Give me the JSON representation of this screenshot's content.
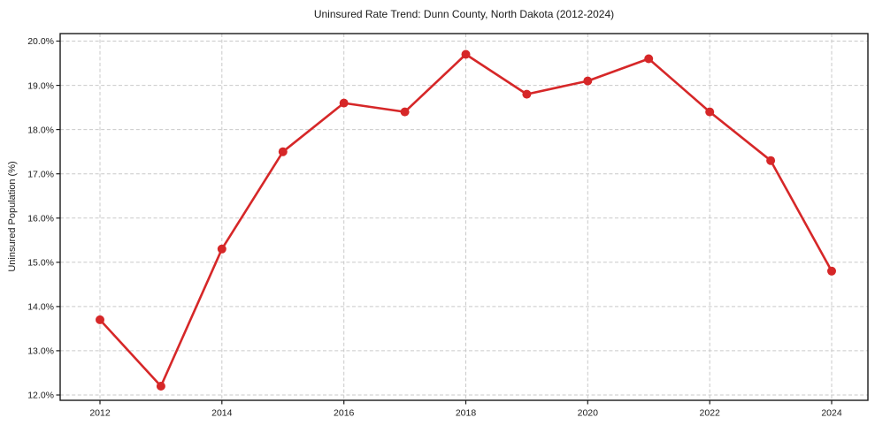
{
  "chart_data": {
    "type": "line",
    "title": "Uninsured Rate Trend: Dunn County, North Dakota (2012-2024)",
    "xlabel": "",
    "ylabel": "Uninsured Population (%)",
    "x": [
      2012,
      2013,
      2014,
      2015,
      2016,
      2017,
      2018,
      2019,
      2020,
      2021,
      2022,
      2023,
      2024
    ],
    "values": [
      13.7,
      12.2,
      15.3,
      17.5,
      18.6,
      18.4,
      19.7,
      18.8,
      19.1,
      19.6,
      18.4,
      17.3,
      14.8
    ],
    "xticks": {
      "values": [
        2012,
        2014,
        2016,
        2018,
        2020,
        2022,
        2024
      ],
      "labels": [
        "2012",
        "2014",
        "2016",
        "2018",
        "2020",
        "2022",
        "2024"
      ]
    },
    "yticks": {
      "values": [
        12,
        13,
        14,
        15,
        16,
        17,
        18,
        19,
        20
      ],
      "labels": [
        "12.0%",
        "13.0%",
        "14.0%",
        "15.0%",
        "16.0%",
        "17.0%",
        "18.0%",
        "19.0%",
        "20.0%"
      ]
    },
    "xlim": [
      2011.347,
      2024.595
    ],
    "ylim": [
      11.88,
      20.17
    ],
    "grid": true,
    "legend": false,
    "colors": {
      "line": "#d62728",
      "marker": "#d62728",
      "grid": "#c9c9c9",
      "spine": "#1a1a1a",
      "text": "#1a1a1a",
      "background": "#ffffff"
    }
  }
}
